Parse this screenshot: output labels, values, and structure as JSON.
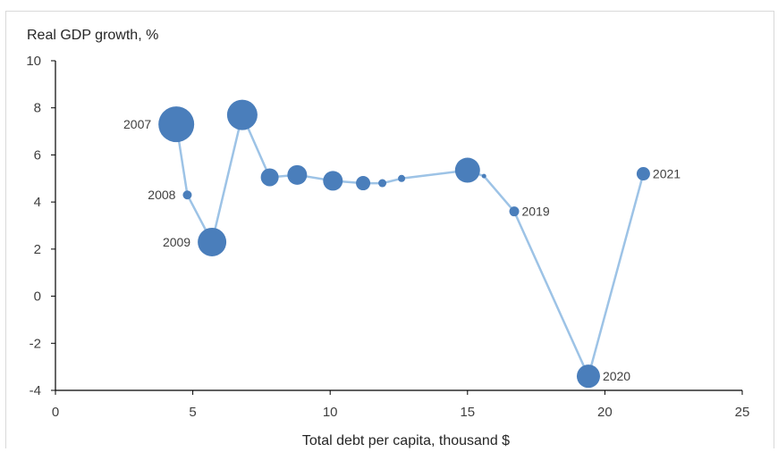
{
  "chart_data": {
    "type": "scatter",
    "ylabel": "Real GDP growth, %",
    "xlabel": "Total debt per capita, thousand $",
    "xlim": [
      0,
      25
    ],
    "ylim": [
      -4,
      10
    ],
    "xticks": [
      0,
      5,
      10,
      15,
      20,
      25
    ],
    "yticks": [
      -4,
      -2,
      0,
      2,
      4,
      6,
      8,
      10
    ],
    "marker_color": "#4a7ebb",
    "line_color": "#9dc3e6",
    "connected": true,
    "bubble_sizes": "relative",
    "points": [
      {
        "label": "2007",
        "x": 4.4,
        "y": 7.3,
        "size": 20
      },
      {
        "label": "2008",
        "x": 4.8,
        "y": 4.3,
        "size": 5
      },
      {
        "label": "2009",
        "x": 5.7,
        "y": 2.3,
        "size": 16
      },
      {
        "label": "",
        "x": 6.8,
        "y": 7.7,
        "size": 17
      },
      {
        "label": "",
        "x": 7.8,
        "y": 5.05,
        "size": 10
      },
      {
        "label": "",
        "x": 8.8,
        "y": 5.15,
        "size": 11
      },
      {
        "label": "",
        "x": 10.1,
        "y": 4.9,
        "size": 11
      },
      {
        "label": "",
        "x": 11.2,
        "y": 4.8,
        "size": 8
      },
      {
        "label": "",
        "x": 11.9,
        "y": 4.8,
        "size": 4.5
      },
      {
        "label": "",
        "x": 12.6,
        "y": 5.0,
        "size": 4
      },
      {
        "label": "",
        "x": 15.0,
        "y": 5.35,
        "size": 14
      },
      {
        "label": "",
        "x": 15.6,
        "y": 5.1,
        "size": 2.5
      },
      {
        "label": "2019",
        "x": 16.7,
        "y": 3.6,
        "size": 5.5
      },
      {
        "label": "2020",
        "x": 19.4,
        "y": -3.4,
        "size": 13
      },
      {
        "label": "2021",
        "x": 21.4,
        "y": 5.2,
        "size": 7.5
      }
    ]
  }
}
